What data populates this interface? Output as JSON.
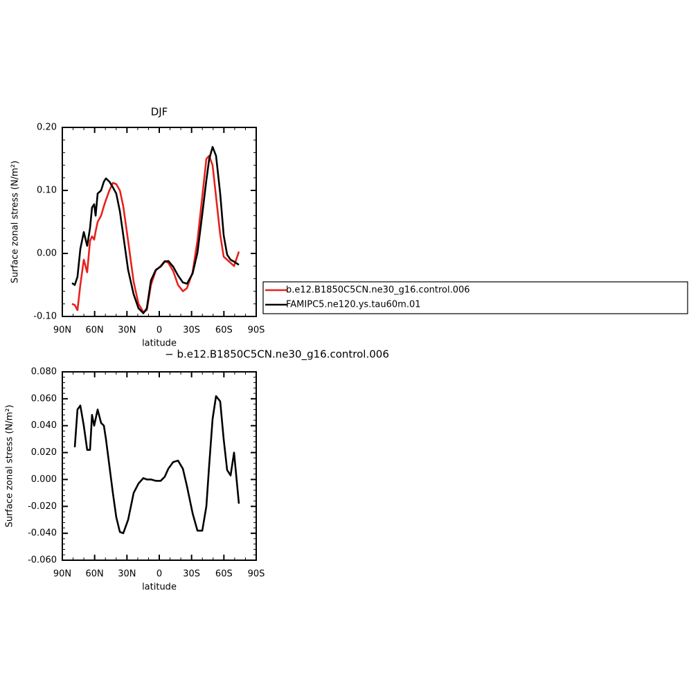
{
  "chart_data": [
    {
      "type": "line",
      "title": "DJF",
      "xlabel": "latitude",
      "ylabel": "Surface zonal stress (N/m²)",
      "x": [
        81.0,
        78.4,
        75.9,
        73.3,
        70.1,
        66.9,
        64.3,
        62.4,
        60.4,
        59.1,
        57.2,
        54.0,
        51.4,
        49.5,
        46.3,
        43.1,
        39.9,
        36.6,
        33.4,
        28.9,
        23.8,
        19.3,
        14.8,
        11.6,
        7.7,
        3.2,
        -1.3,
        -5.1,
        -8.4,
        -12.9,
        -17.4,
        -21.9,
        -25.7,
        -30.9,
        -35.4,
        -39.9,
        -43.7,
        -46.3,
        -49.5,
        -52.7,
        -56.6,
        -59.8,
        -63.0,
        -66.2,
        -69.4,
        -73.9
      ],
      "series": [
        {
          "name": "b.e12.B1850C5CN.ne30_g16.control.006",
          "color": "#e8201c",
          "values": [
            -0.08,
            -0.082,
            -0.09,
            -0.05,
            -0.01,
            -0.03,
            0.02,
            0.027,
            0.022,
            0.035,
            0.05,
            0.06,
            0.075,
            0.085,
            0.1,
            0.112,
            0.11,
            0.1,
            0.075,
            0.02,
            -0.045,
            -0.08,
            -0.093,
            -0.09,
            -0.05,
            -0.027,
            -0.02,
            -0.012,
            -0.015,
            -0.028,
            -0.05,
            -0.06,
            -0.055,
            -0.03,
            0.02,
            0.09,
            0.15,
            0.155,
            0.14,
            0.09,
            0.03,
            -0.005,
            -0.01,
            -0.015,
            -0.02,
            0.003
          ]
        },
        {
          "name": "FAMIPC5.ne120.ys.tau60m.01",
          "color": "#000000",
          "values": [
            -0.047,
            -0.05,
            -0.037,
            0.007,
            0.034,
            0.012,
            0.04,
            0.073,
            0.078,
            0.06,
            0.095,
            0.1,
            0.114,
            0.119,
            0.114,
            0.105,
            0.095,
            0.067,
            0.029,
            -0.026,
            -0.065,
            -0.087,
            -0.095,
            -0.087,
            -0.043,
            -0.026,
            -0.021,
            -0.013,
            -0.012,
            -0.021,
            -0.035,
            -0.046,
            -0.048,
            -0.032,
            0.001,
            0.062,
            0.116,
            0.149,
            0.169,
            0.155,
            0.095,
            0.029,
            -0.002,
            -0.01,
            -0.013,
            -0.018
          ]
        }
      ],
      "xlim": [
        90,
        -90
      ],
      "xticks": [
        {
          "value": 90,
          "label": "90N"
        },
        {
          "value": 60,
          "label": "60N"
        },
        {
          "value": 30,
          "label": "30N"
        },
        0,
        {
          "value": -30,
          "label": "30S"
        },
        {
          "value": -60,
          "label": "60S"
        },
        {
          "value": -90,
          "label": "90S"
        }
      ],
      "ylim": [
        -0.1,
        0.2
      ],
      "yticks": [
        {
          "value": -0.1,
          "label": "-0.10"
        },
        {
          "value": 0,
          "label": "0.00"
        },
        {
          "value": 0.1,
          "label": "0.10"
        },
        {
          "value": 0.2,
          "label": "0.20"
        }
      ]
    },
    {
      "type": "line",
      "title": "− b.e12.B1850C5CN.ne30_g16.control.006",
      "xlabel": "latitude",
      "ylabel": "Surface zonal stress (N/m²)",
      "x": [
        81.0,
        78.4,
        75.9,
        73.3,
        70.1,
        66.9,
        64.3,
        62.4,
        60.4,
        59.1,
        57.2,
        54.0,
        51.4,
        49.5,
        46.3,
        43.1,
        39.9,
        36.6,
        33.4,
        28.9,
        23.8,
        19.3,
        14.8,
        11.6,
        7.7,
        3.2,
        -1.3,
        -5.1,
        -8.4,
        -12.9,
        -17.4,
        -21.9,
        -25.7,
        -30.9,
        -35.4,
        -39.9,
        -43.7,
        -46.3,
        -49.5,
        -52.7,
        -56.6,
        -59.8,
        -63.0,
        -66.2,
        -69.4,
        -73.9
      ],
      "series": [
        {
          "color": "#000000",
          "values": [
            null,
            0.024,
            0.052,
            0.055,
            0.04,
            0.022,
            0.022,
            0.048,
            0.04,
            0.045,
            0.052,
            0.042,
            0.04,
            0.03,
            0.01,
            -0.01,
            -0.028,
            -0.039,
            -0.04,
            -0.03,
            -0.01,
            -0.003,
            0.001,
            0,
            0,
            -0.001,
            -0.001,
            0.002,
            0.008,
            0.013,
            0.014,
            0.008,
            -0.005,
            -0.025,
            -0.038,
            -0.038,
            -0.02,
            0.01,
            0.045,
            0.062,
            0.058,
            0.03,
            0.007,
            0.003,
            0.02,
            -0.018
          ]
        }
      ],
      "xlim": [
        90,
        -90
      ],
      "xticks": [
        {
          "value": 90,
          "label": "90N"
        },
        {
          "value": 60,
          "label": "60N"
        },
        {
          "value": 30,
          "label": "30N"
        },
        0,
        {
          "value": -30,
          "label": "30S"
        },
        {
          "value": -60,
          "label": "60S"
        },
        {
          "value": -90,
          "label": "90S"
        }
      ],
      "ylim": [
        -0.06,
        0.08
      ],
      "yticks": [
        {
          "value": -0.06,
          "label": "-0.060"
        },
        {
          "value": -0.04,
          "label": "-0.040"
        },
        {
          "value": -0.02,
          "label": "-0.020"
        },
        {
          "value": 0,
          "label": "0.000"
        },
        {
          "value": 0.02,
          "label": "0.020"
        },
        {
          "value": 0.04,
          "label": "0.040"
        },
        {
          "value": 0.06,
          "label": "0.060"
        },
        {
          "value": 0.08,
          "label": "0.080"
        }
      ]
    }
  ]
}
